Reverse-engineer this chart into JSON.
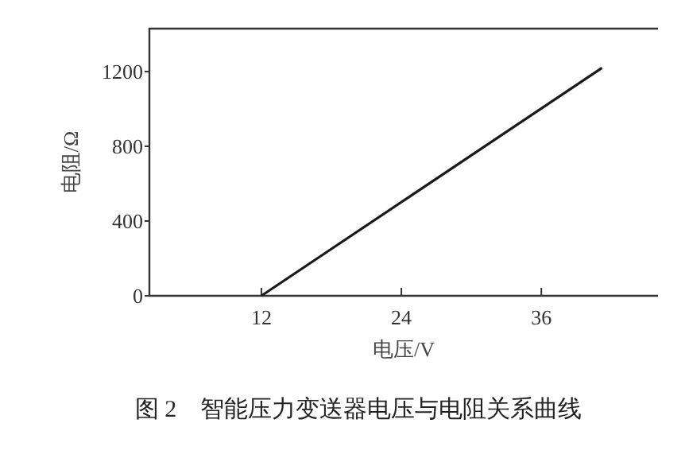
{
  "chart_data": {
    "type": "line",
    "title": "图 2　智能压力变送器电压与电阻关系曲线",
    "xlabel": "电压/V",
    "ylabel": "电阻/Ω",
    "x": [
      12,
      41.2
    ],
    "series": [
      {
        "color": "#1a1a1a",
        "values": [
          0,
          1220
        ]
      }
    ],
    "xlim": [
      2.4,
      46
    ],
    "xticks": [
      12,
      24,
      36
    ],
    "ylim": [
      0,
      1430
    ],
    "yticks": [
      0,
      400,
      800,
      1200
    ],
    "grid": false,
    "marker": "none",
    "line_style": "solid"
  }
}
